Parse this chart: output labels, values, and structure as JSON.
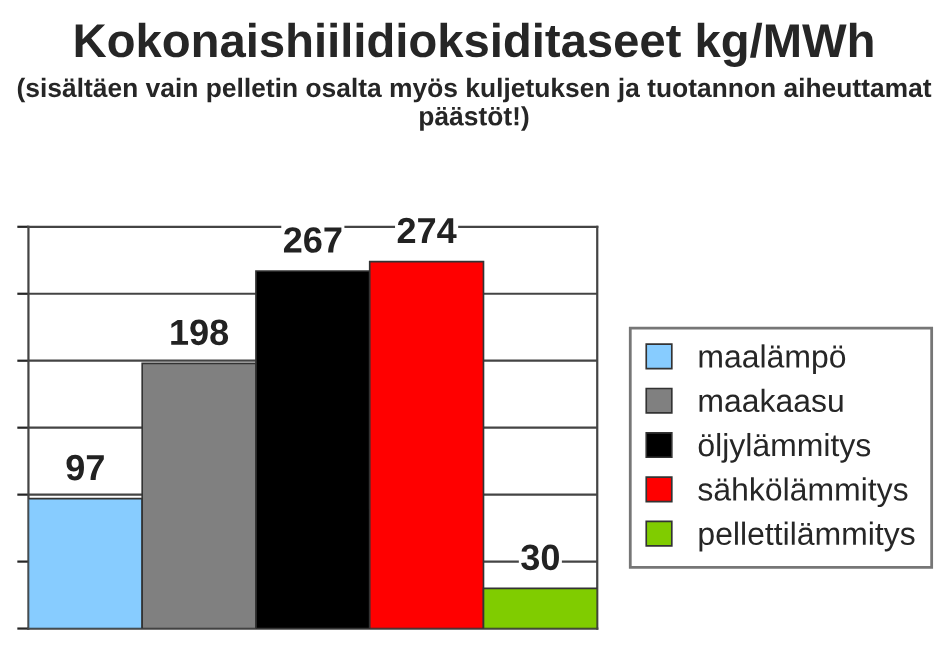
{
  "chart_data": {
    "type": "bar",
    "title": "Kokonaishiilidioksiditaseet kg/MWh",
    "subtitle": "(sisältäen vain pelletin osalta myös kuljetuksen ja tuotannon aiheuttamat päästöt!)",
    "categories": [
      null
    ],
    "series": [
      {
        "name": "maalämpö",
        "color": "#87ccff",
        "values": [
          97
        ]
      },
      {
        "name": "maakaasu",
        "color": "#808080",
        "values": [
          198
        ]
      },
      {
        "name": "öljylämmitys",
        "color": "#000000",
        "values": [
          267
        ]
      },
      {
        "name": "sähkölämmitys",
        "color": "#ff0000",
        "values": [
          274
        ]
      },
      {
        "name": "pellettilämmitys",
        "color": "#80cc00",
        "values": [
          30
        ]
      }
    ],
    "ylim": [
      0,
      300
    ],
    "yticks": [
      {
        "value": 0,
        "label": null
      },
      {
        "value": 50,
        "label": null
      },
      {
        "value": 100,
        "label": null
      },
      {
        "value": 150,
        "label": null
      },
      {
        "value": 200,
        "label": null
      },
      {
        "value": 250,
        "label": null
      },
      {
        "value": 300,
        "label": null
      }
    ],
    "grid": "y",
    "legend": "right",
    "data_labels": true
  }
}
